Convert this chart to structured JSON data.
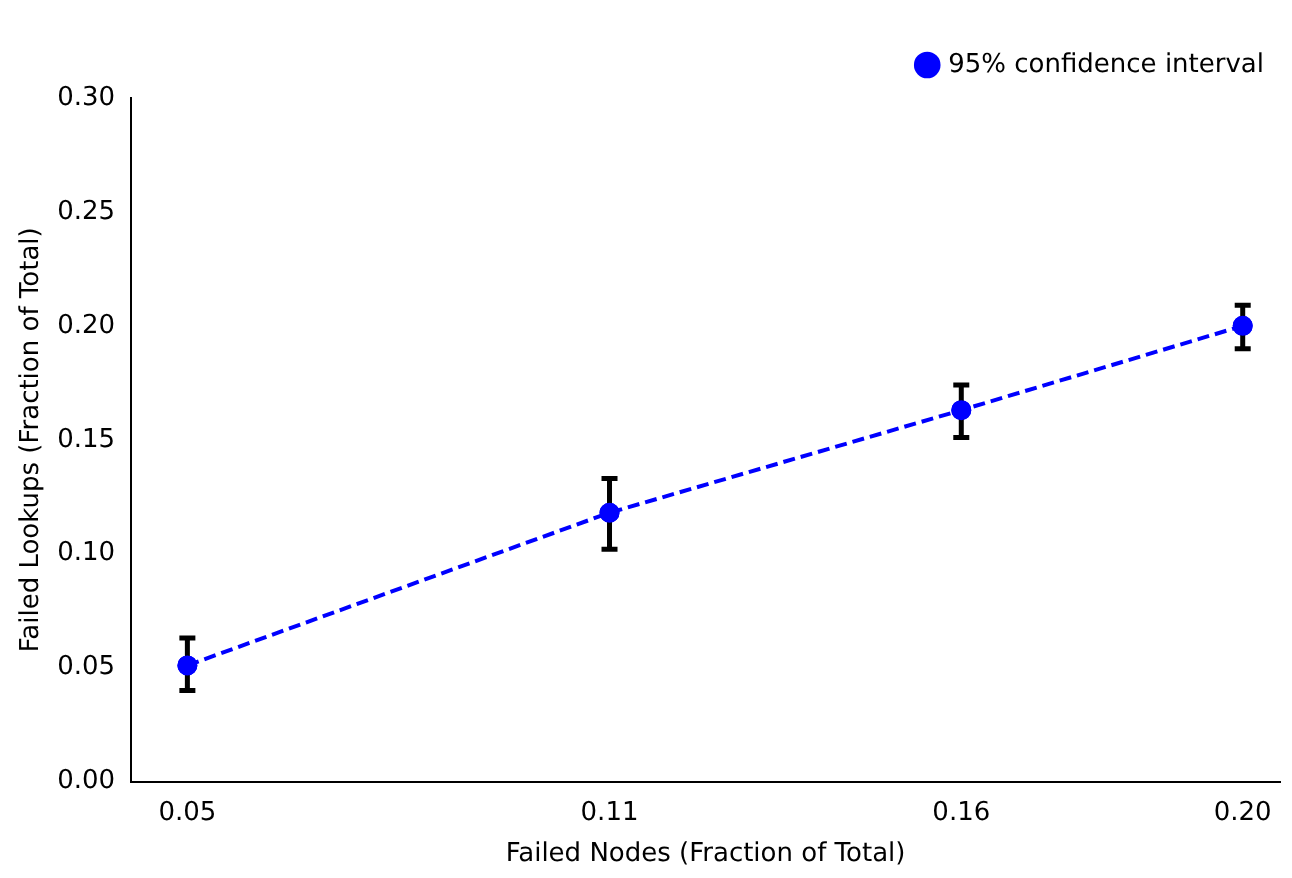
{
  "chart_data": {
    "type": "line",
    "xlabel": "Failed Nodes (Fraction of Total)",
    "ylabel": "Failed Lookups (Fraction of Total)",
    "x": [
      0.05,
      0.11,
      0.16,
      0.2
    ],
    "series": [
      {
        "name": "95% confidence interval",
        "color": "#0000ff",
        "values": [
          0.051,
          0.118,
          0.163,
          0.2
        ],
        "errors": [
          [
            0.04,
            0.063
          ],
          [
            0.102,
            0.133
          ],
          [
            0.151,
            0.174
          ],
          [
            0.19,
            0.209
          ]
        ]
      }
    ],
    "xlim": [
      0.042,
      0.2053
    ],
    "xticks": [
      {
        "value": 0.05,
        "label": "0.05"
      },
      {
        "value": 0.11,
        "label": "0.11"
      },
      {
        "value": 0.16,
        "label": "0.16"
      },
      {
        "value": 0.2,
        "label": "0.20"
      }
    ],
    "ylim": [
      0,
      0.3
    ],
    "yticks": [
      {
        "value": 0,
        "label": "0.00"
      },
      {
        "value": 0.05,
        "label": "0.05"
      },
      {
        "value": 0.1,
        "label": "0.10"
      },
      {
        "value": 0.15,
        "label": "0.15"
      },
      {
        "value": 0.2,
        "label": "0.20"
      },
      {
        "value": 0.25,
        "label": "0.25"
      },
      {
        "value": 0.3,
        "label": "0.30"
      }
    ],
    "grid": false,
    "legend": "top right",
    "marker": "circle",
    "line_style": "dashed"
  }
}
